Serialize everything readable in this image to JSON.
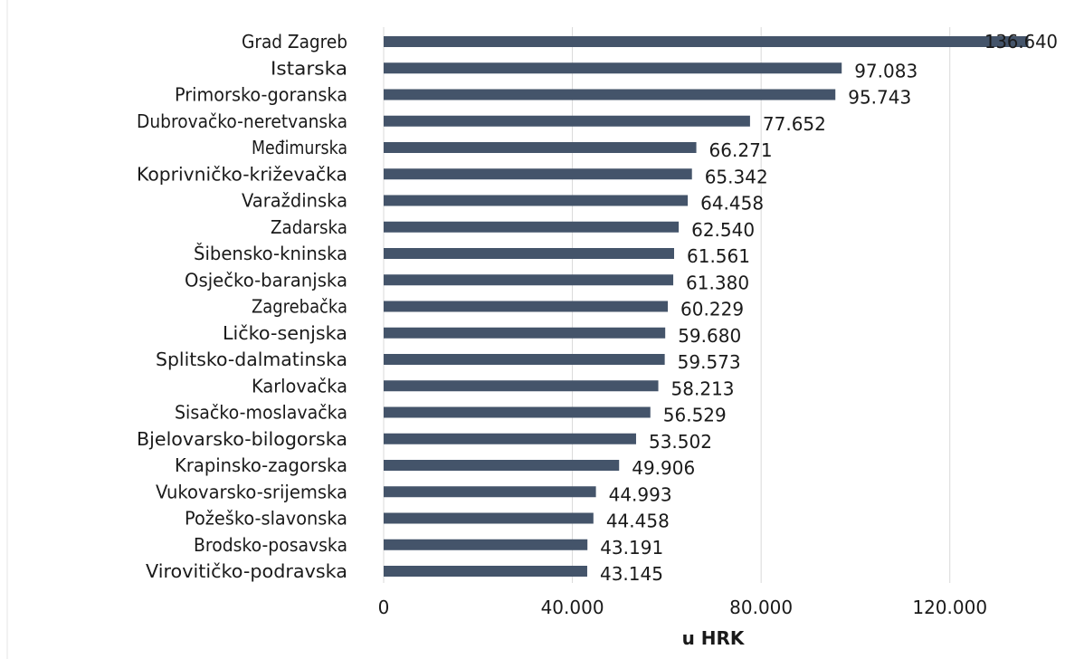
{
  "chart_data": {
    "type": "bar",
    "orientation": "horizontal",
    "categories": [
      "Grad Zagreb",
      "Istarska",
      "Primorsko-goranska",
      "Dubrovačko-neretvanska",
      "Međimurska",
      "Koprivničko-križevačka",
      "Varaždinska",
      "Zadarska",
      "Šibensko-kninska",
      "Osječko-baranjska",
      "Zagrebačka",
      "Ličko-senjska",
      "Splitsko-dalmatinska",
      "Karlovačka",
      "Sisačko-moslavačka",
      "Bjelovarsko-bilogorska",
      "Krapinsko-zagorska",
      "Vukovarsko-srijemska",
      "Požeško-slavonska",
      "Brodsko-posavska",
      "Virovitičko-podravska"
    ],
    "values": [
      136640,
      97083,
      95743,
      77652,
      66271,
      65342,
      64458,
      62540,
      61561,
      61380,
      60229,
      59680,
      59573,
      58213,
      56529,
      53502,
      49906,
      44993,
      44458,
      43191,
      43145
    ],
    "value_labels": [
      "136.640",
      "97.083",
      "95.743",
      "77.652",
      "66.271",
      "65.342",
      "64.458",
      "62.540",
      "61.561",
      "61.380",
      "60.229",
      "59.680",
      "59.573",
      "58.213",
      "56.529",
      "53.502",
      "49.906",
      "44.993",
      "44.458",
      "43.191",
      "43.145"
    ],
    "x_ticks": [
      0,
      40000,
      80000,
      120000
    ],
    "x_tick_labels": [
      "0",
      "40.000",
      "80.000",
      "120.000"
    ],
    "xlabel": "u HRK",
    "xlim": [
      0,
      140000
    ],
    "grid": true,
    "bar_color": "#44546a"
  }
}
